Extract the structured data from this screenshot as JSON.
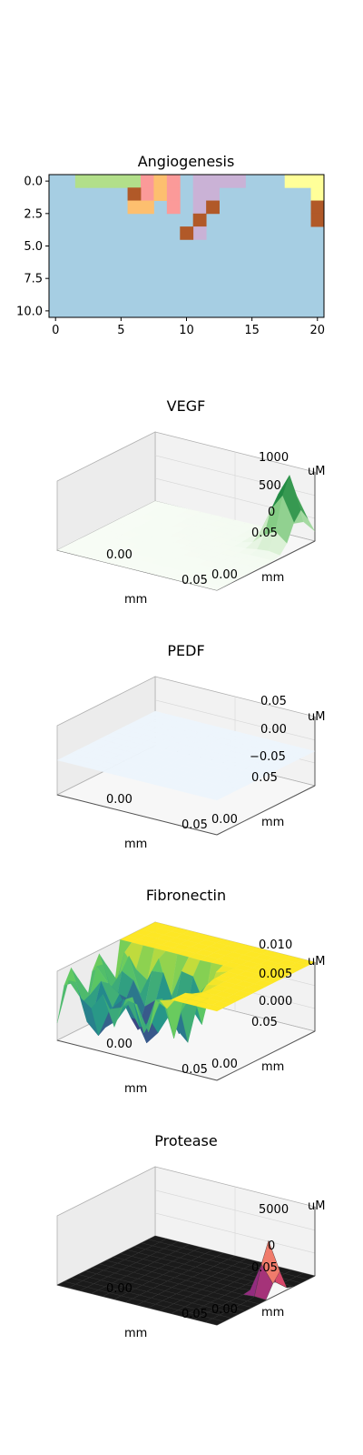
{
  "colors": {
    "background_cell": "#a6cee3",
    "pane_fill": "#f2f2f2",
    "pane_edge": "#b0b0b0",
    "grid": "#d6d6d6"
  },
  "chart_data": [
    {
      "type": "heatmap",
      "title": "Angiogenesis",
      "xlim": [
        -0.5,
        20.5
      ],
      "ylim": [
        10.5,
        -0.5
      ],
      "xticks": [
        "0",
        "5",
        "10",
        "15",
        "20"
      ],
      "yticks": [
        "0.0",
        "2.5",
        "5.0",
        "7.5",
        "10.0"
      ],
      "background_color": "#a6cee3",
      "cells": [
        {
          "x": 2,
          "y": 0,
          "color": "#b2df8a"
        },
        {
          "x": 3,
          "y": 0,
          "color": "#b2df8a"
        },
        {
          "x": 4,
          "y": 0,
          "color": "#b2df8a"
        },
        {
          "x": 5,
          "y": 0,
          "color": "#b2df8a"
        },
        {
          "x": 6,
          "y": 0,
          "color": "#b2df8a"
        },
        {
          "x": 7,
          "y": 0,
          "color": "#fb9a99"
        },
        {
          "x": 7,
          "y": 1,
          "color": "#fb9a99"
        },
        {
          "x": 8,
          "y": 0,
          "color": "#fdbf6f"
        },
        {
          "x": 8,
          "y": 1,
          "color": "#fdbf6f"
        },
        {
          "x": 6,
          "y": 1,
          "color": "#b15928"
        },
        {
          "x": 6,
          "y": 2,
          "color": "#fdbf6f"
        },
        {
          "x": 7,
          "y": 2,
          "color": "#fdbf6f"
        },
        {
          "x": 9,
          "y": 0,
          "color": "#fb9a99"
        },
        {
          "x": 9,
          "y": 1,
          "color": "#fb9a99"
        },
        {
          "x": 9,
          "y": 2,
          "color": "#fb9a99"
        },
        {
          "x": 11,
          "y": 0,
          "color": "#cab2d6"
        },
        {
          "x": 12,
          "y": 0,
          "color": "#cab2d6"
        },
        {
          "x": 13,
          "y": 0,
          "color": "#cab2d6"
        },
        {
          "x": 14,
          "y": 0,
          "color": "#cab2d6"
        },
        {
          "x": 11,
          "y": 1,
          "color": "#cab2d6"
        },
        {
          "x": 12,
          "y": 1,
          "color": "#cab2d6"
        },
        {
          "x": 11,
          "y": 2,
          "color": "#cab2d6"
        },
        {
          "x": 12,
          "y": 2,
          "color": "#b15928"
        },
        {
          "x": 11,
          "y": 3,
          "color": "#b15928"
        },
        {
          "x": 11,
          "y": 4,
          "color": "#cab2d6"
        },
        {
          "x": 10,
          "y": 4,
          "color": "#b15928"
        },
        {
          "x": 18,
          "y": 0,
          "color": "#ffff99"
        },
        {
          "x": 19,
          "y": 0,
          "color": "#ffff99"
        },
        {
          "x": 20,
          "y": 0,
          "color": "#ffff99"
        },
        {
          "x": 20,
          "y": 1,
          "color": "#ffff99"
        },
        {
          "x": 20,
          "y": 2,
          "color": "#b15928"
        },
        {
          "x": 20,
          "y": 3,
          "color": "#b15928"
        }
      ]
    },
    {
      "type": "surface",
      "title": "VEGF",
      "colormap": "Greens",
      "xticks": [
        "0.00",
        "0.05"
      ],
      "xlabel": "mm",
      "yticks": [
        "0.00",
        "0.05"
      ],
      "ylabel": "mm",
      "zticks": [
        "0",
        "500",
        "1000"
      ],
      "zlabel": "uM",
      "zlim": [
        0,
        1000
      ],
      "peak": {
        "x": 0.05,
        "y": 0.048,
        "z": 1000
      }
    },
    {
      "type": "surface",
      "title": "PEDF",
      "colormap": "Blues",
      "xticks": [
        "0.00",
        "0.05"
      ],
      "xlabel": "mm",
      "yticks": [
        "0.00",
        "0.05"
      ],
      "ylabel": "mm",
      "zticks": [
        "−0.05",
        "0.00",
        "0.05"
      ],
      "zlabel": "uM",
      "zlim": [
        -0.05,
        0.05
      ],
      "value": 0.0
    },
    {
      "type": "surface",
      "title": "Fibronectin",
      "colormap": "viridis",
      "xticks": [
        "0.00",
        "0.05"
      ],
      "xlabel": "mm",
      "yticks": [
        "0.00",
        "0.05"
      ],
      "ylabel": "mm",
      "zticks": [
        "0.000",
        "0.005",
        "0.010"
      ],
      "zlabel": "uM",
      "zlim": [
        0,
        0.01
      ],
      "plateau": 0.01
    },
    {
      "type": "surface",
      "title": "Protease",
      "colormap": "magma",
      "xticks": [
        "0.00",
        "0.05"
      ],
      "xlabel": "mm",
      "yticks": [
        "0.00",
        "0.05"
      ],
      "ylabel": "mm",
      "zticks": [
        "0",
        "5000"
      ],
      "zlabel": "uM",
      "zlim": [
        0,
        7000
      ],
      "peak": {
        "x": 0.05,
        "y": 0.045,
        "z": 7000
      }
    }
  ]
}
